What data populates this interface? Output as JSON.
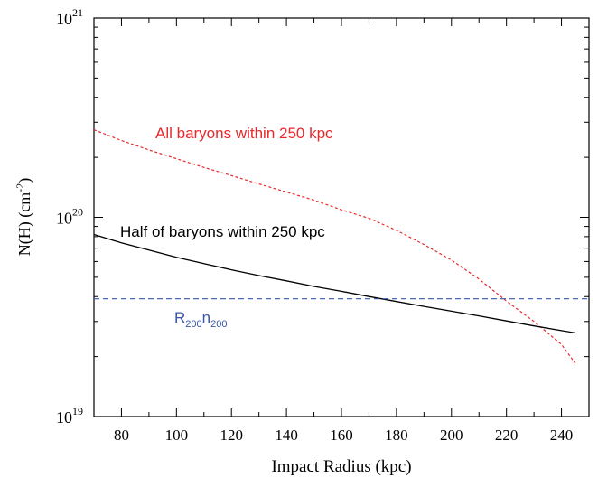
{
  "chart_data": {
    "type": "line",
    "title": "",
    "xlabel": "Impact Radius (kpc)",
    "ylabel": {
      "main": "N(H)  (cm",
      "sup": "-2",
      "close": ")"
    },
    "xlim": [
      70,
      250
    ],
    "ylim": [
      1e+19,
      1e+21
    ],
    "yscale": "log",
    "x_ticks": [
      80,
      100,
      120,
      140,
      160,
      180,
      200,
      220,
      240
    ],
    "y_ticks": [
      {
        "value": 1e+19,
        "base": "10",
        "exp": "19"
      },
      {
        "value": 1e+20,
        "base": "10",
        "exp": "20"
      },
      {
        "value": 1e+21,
        "base": "10",
        "exp": "21"
      }
    ],
    "grid": false,
    "series": [
      {
        "name": "All baryons within 250 kpc",
        "color": "#e8282a",
        "style": "dotted",
        "x": [
          70,
          80,
          90,
          100,
          110,
          120,
          130,
          140,
          150,
          160,
          170,
          180,
          190,
          200,
          210,
          220,
          230,
          240,
          245
        ],
        "y": [
          2.75e+20,
          2.43e+20,
          2.18e+20,
          1.97e+20,
          1.78e+20,
          1.62e+20,
          1.47e+20,
          1.34e+20,
          1.22e+20,
          1.09e+20,
          9.9e+19,
          8.6e+19,
          7.3e+19,
          6.1e+19,
          4.9e+19,
          3.8e+19,
          3e+19,
          2.3e+19,
          1.85e+19
        ]
      },
      {
        "name": "Half of baryons within 250 kpc",
        "color": "#000000",
        "style": "solid",
        "x": [
          70,
          80,
          90,
          100,
          110,
          120,
          130,
          140,
          150,
          160,
          170,
          180,
          190,
          200,
          210,
          220,
          230,
          240,
          245
        ],
        "y": [
          8.2e+19,
          7.45e+19,
          6.85e+19,
          6.3e+19,
          5.85e+19,
          5.45e+19,
          5.1e+19,
          4.8e+19,
          4.5e+19,
          4.25e+19,
          4e+19,
          3.78e+19,
          3.57e+19,
          3.38e+19,
          3.2e+19,
          3.02e+19,
          2.85e+19,
          2.7e+19,
          2.63e+19
        ]
      },
      {
        "name": "R200n200",
        "color": "#3857a8",
        "style": "dashed",
        "x": [
          70,
          250
        ],
        "y": [
          3.9e+19,
          3.9e+19
        ]
      }
    ],
    "annotations": [
      {
        "series": 0,
        "text": "All baryons within 250 kpc",
        "color": "#e8282a"
      },
      {
        "series": 1,
        "text": "Half of baryons within 250 kpc",
        "color": "#000000"
      },
      {
        "series": 2,
        "main": "R",
        "sub1": "200",
        "mid": "n",
        "sub2": "200",
        "color": "#3857a8"
      }
    ]
  }
}
